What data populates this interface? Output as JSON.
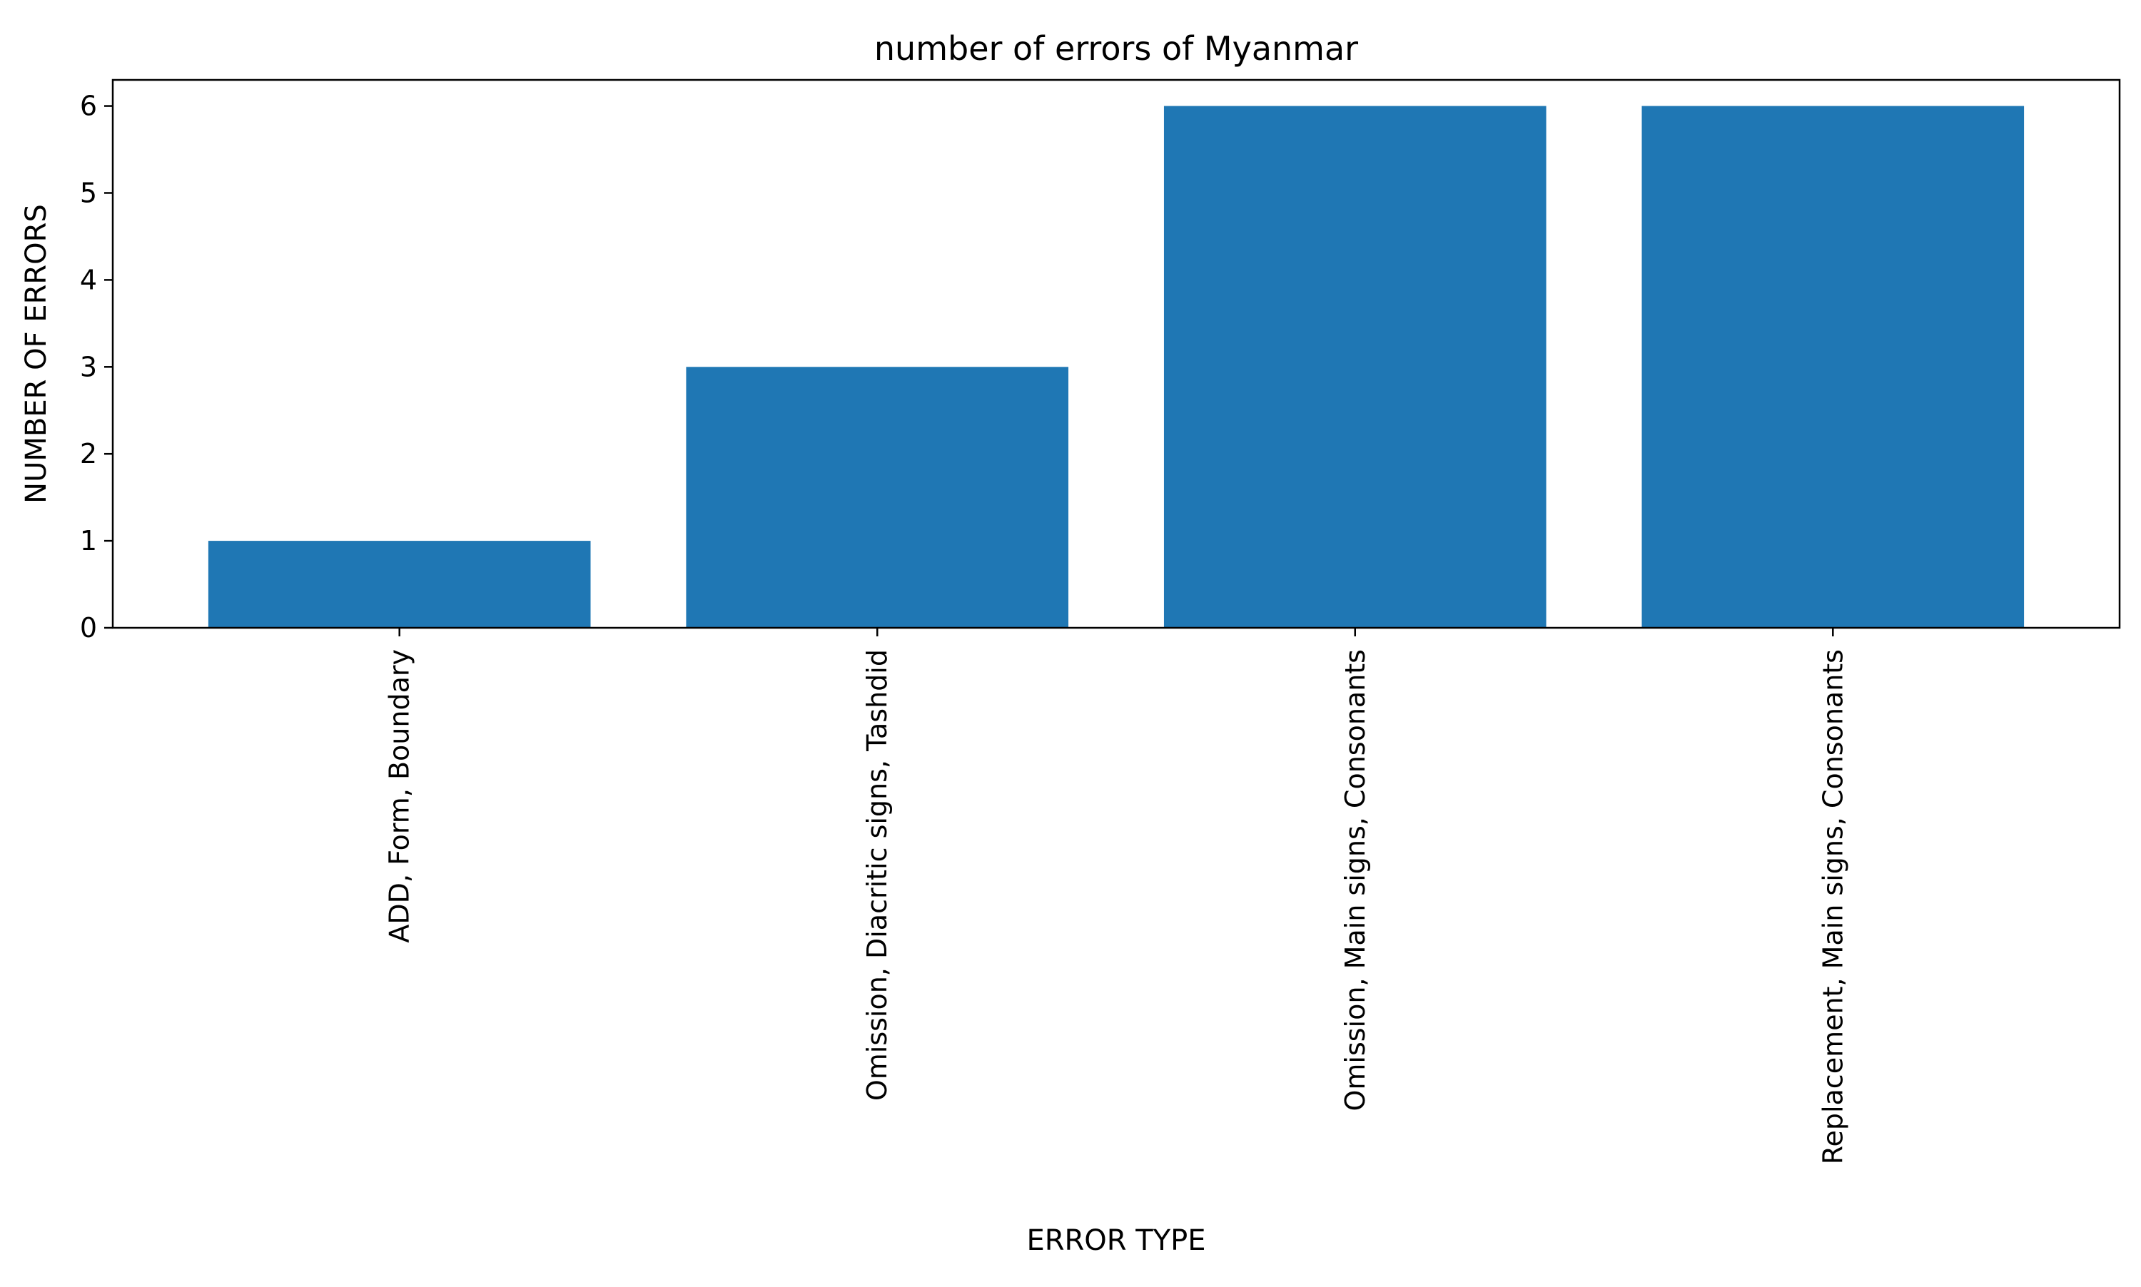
{
  "chart_data": {
    "type": "bar",
    "title": "number of errors of Myanmar",
    "xlabel": "ERROR TYPE",
    "ylabel": "NUMBER OF ERRORS",
    "categories": [
      "ADD, Form, Boundary",
      "Omission, Diacritic signs, Tashdid",
      "Omission, Main signs, Consonants",
      "Replacement, Main signs, Consonants"
    ],
    "values": [
      1,
      3,
      6,
      6
    ],
    "ylim": [
      0,
      6.3
    ],
    "yticks": [
      0,
      1,
      2,
      3,
      4,
      5,
      6
    ],
    "xtick_rotation": 90,
    "grid": false,
    "legend": "none",
    "colors": {
      "bar": "#1f77b4",
      "axes": "#000000",
      "background": "#ffffff"
    }
  }
}
